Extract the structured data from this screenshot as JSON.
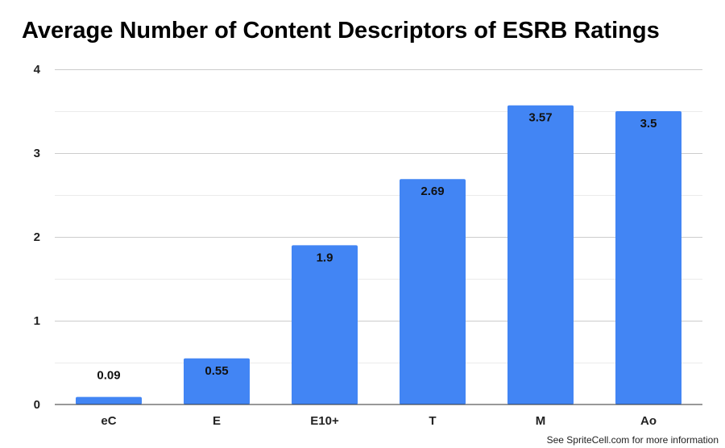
{
  "chart_data": {
    "type": "bar",
    "title": "Average Number of Content Descriptors of ESRB Ratings",
    "xlabel": "",
    "ylabel": "",
    "categories": [
      "eC",
      "E",
      "E10+",
      "T",
      "M",
      "Ao"
    ],
    "values": [
      0.09,
      0.55,
      1.9,
      2.69,
      3.57,
      3.5
    ],
    "data_labels": [
      "0.09",
      "0.55",
      "1.9",
      "2.69",
      "3.57",
      "3.5"
    ],
    "ylim": [
      0,
      4
    ],
    "y_ticks": [
      0,
      1,
      2,
      3,
      4
    ],
    "y_tick_labels": [
      "0",
      "1",
      "2",
      "3",
      "4"
    ],
    "grid": true,
    "legend": "none",
    "bar_color": "#4285f4"
  },
  "footer": "See SpriteCell.com for more information"
}
